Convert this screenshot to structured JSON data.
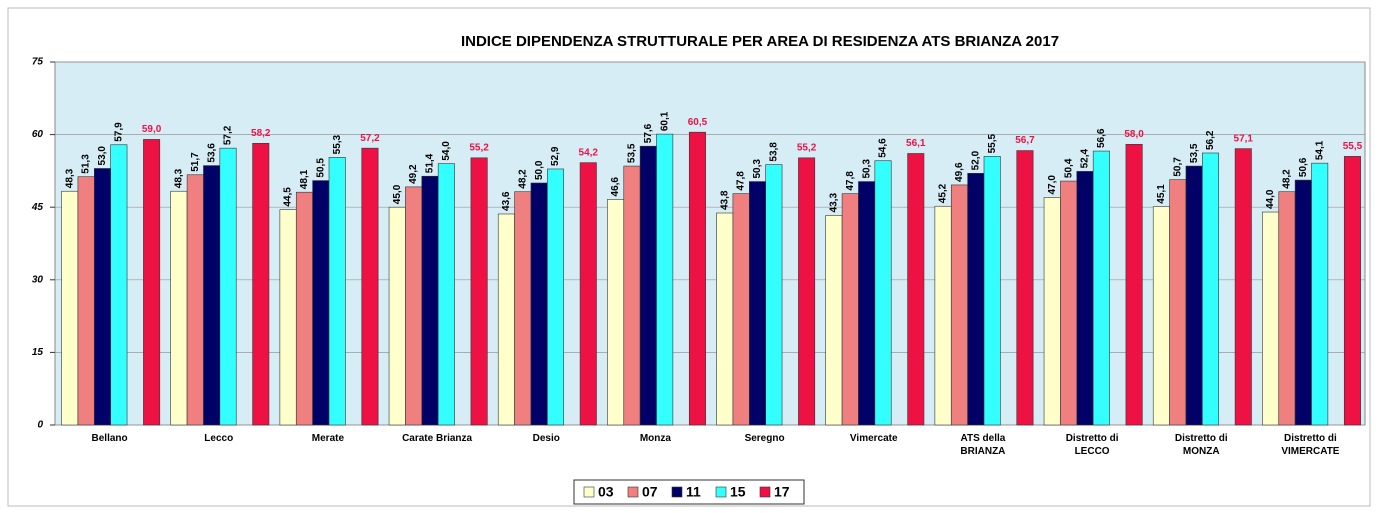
{
  "chart_data": {
    "type": "bar",
    "title": "INDICE DIPENDENZA STRUTTURALE PER AREA DI RESIDENZA ATS BRIANZA 2017",
    "categories": [
      "Bellano",
      "Lecco",
      "Merate",
      "Carate Brianza",
      "Desio",
      "Monza",
      "Seregno",
      "Vimercate",
      "ATS della\nBRIANZA",
      "Distretto di\nLECCO",
      "Distretto di\nMONZA",
      "Distretto di\nVIMERCATE"
    ],
    "series": [
      {
        "name": "03",
        "color": "#ffffcc",
        "values": [
          48.3,
          48.3,
          44.5,
          45.0,
          43.6,
          46.6,
          43.8,
          43.3,
          45.2,
          47.0,
          45.1,
          44.0
        ],
        "value_labels": [
          "48,3",
          "48,3",
          "44,5",
          "45,0",
          "43,6",
          "46,6",
          "43,8",
          "43,3",
          "45,2",
          "47,0",
          "45,1",
          "44,0"
        ]
      },
      {
        "name": "07",
        "color": "#f08080",
        "values": [
          51.3,
          51.7,
          48.1,
          49.2,
          48.2,
          53.5,
          47.8,
          47.8,
          49.6,
          50.4,
          50.7,
          48.2
        ],
        "value_labels": [
          "51,3",
          "51,7",
          "48,1",
          "49,2",
          "48,2",
          "53,5",
          "47,8",
          "47,8",
          "49,6",
          "50,4",
          "50,7",
          "48,2"
        ]
      },
      {
        "name": "11",
        "color": "#000066",
        "values": [
          53.0,
          53.6,
          50.5,
          51.4,
          50.0,
          57.6,
          50.3,
          50.3,
          52.0,
          52.4,
          53.5,
          50.6
        ],
        "value_labels": [
          "53,0",
          "53,6",
          "50,5",
          "51,4",
          "50,0",
          "57,6",
          "50,3",
          "50,3",
          "52,0",
          "52,4",
          "53,5",
          "50,6"
        ]
      },
      {
        "name": "15",
        "color": "#33ffff",
        "values": [
          57.9,
          57.2,
          55.3,
          54.0,
          52.9,
          60.1,
          53.8,
          54.6,
          55.5,
          56.6,
          56.2,
          54.1
        ],
        "value_labels": [
          "57,9",
          "57,2",
          "55,3",
          "54,0",
          "52,9",
          "60,1",
          "53,8",
          "54,6",
          "55,5",
          "56,6",
          "56,2",
          "54,1"
        ]
      },
      {
        "name": "17",
        "color": "#ee1144",
        "values": [
          59.0,
          58.2,
          57.2,
          55.2,
          54.2,
          60.5,
          55.2,
          56.1,
          56.7,
          58.0,
          57.1,
          55.5
        ],
        "value_labels": [
          "59,0",
          "58,2",
          "57,2",
          "55,2",
          "54,2",
          "60,5",
          "55,2",
          "56,1",
          "56,7",
          "58,0",
          "57,1",
          "55,5"
        ]
      }
    ],
    "ylim": [
      0,
      75
    ],
    "yticks": [
      0,
      15,
      30,
      45,
      60,
      75
    ],
    "grid": true,
    "legend": "bottom"
  }
}
